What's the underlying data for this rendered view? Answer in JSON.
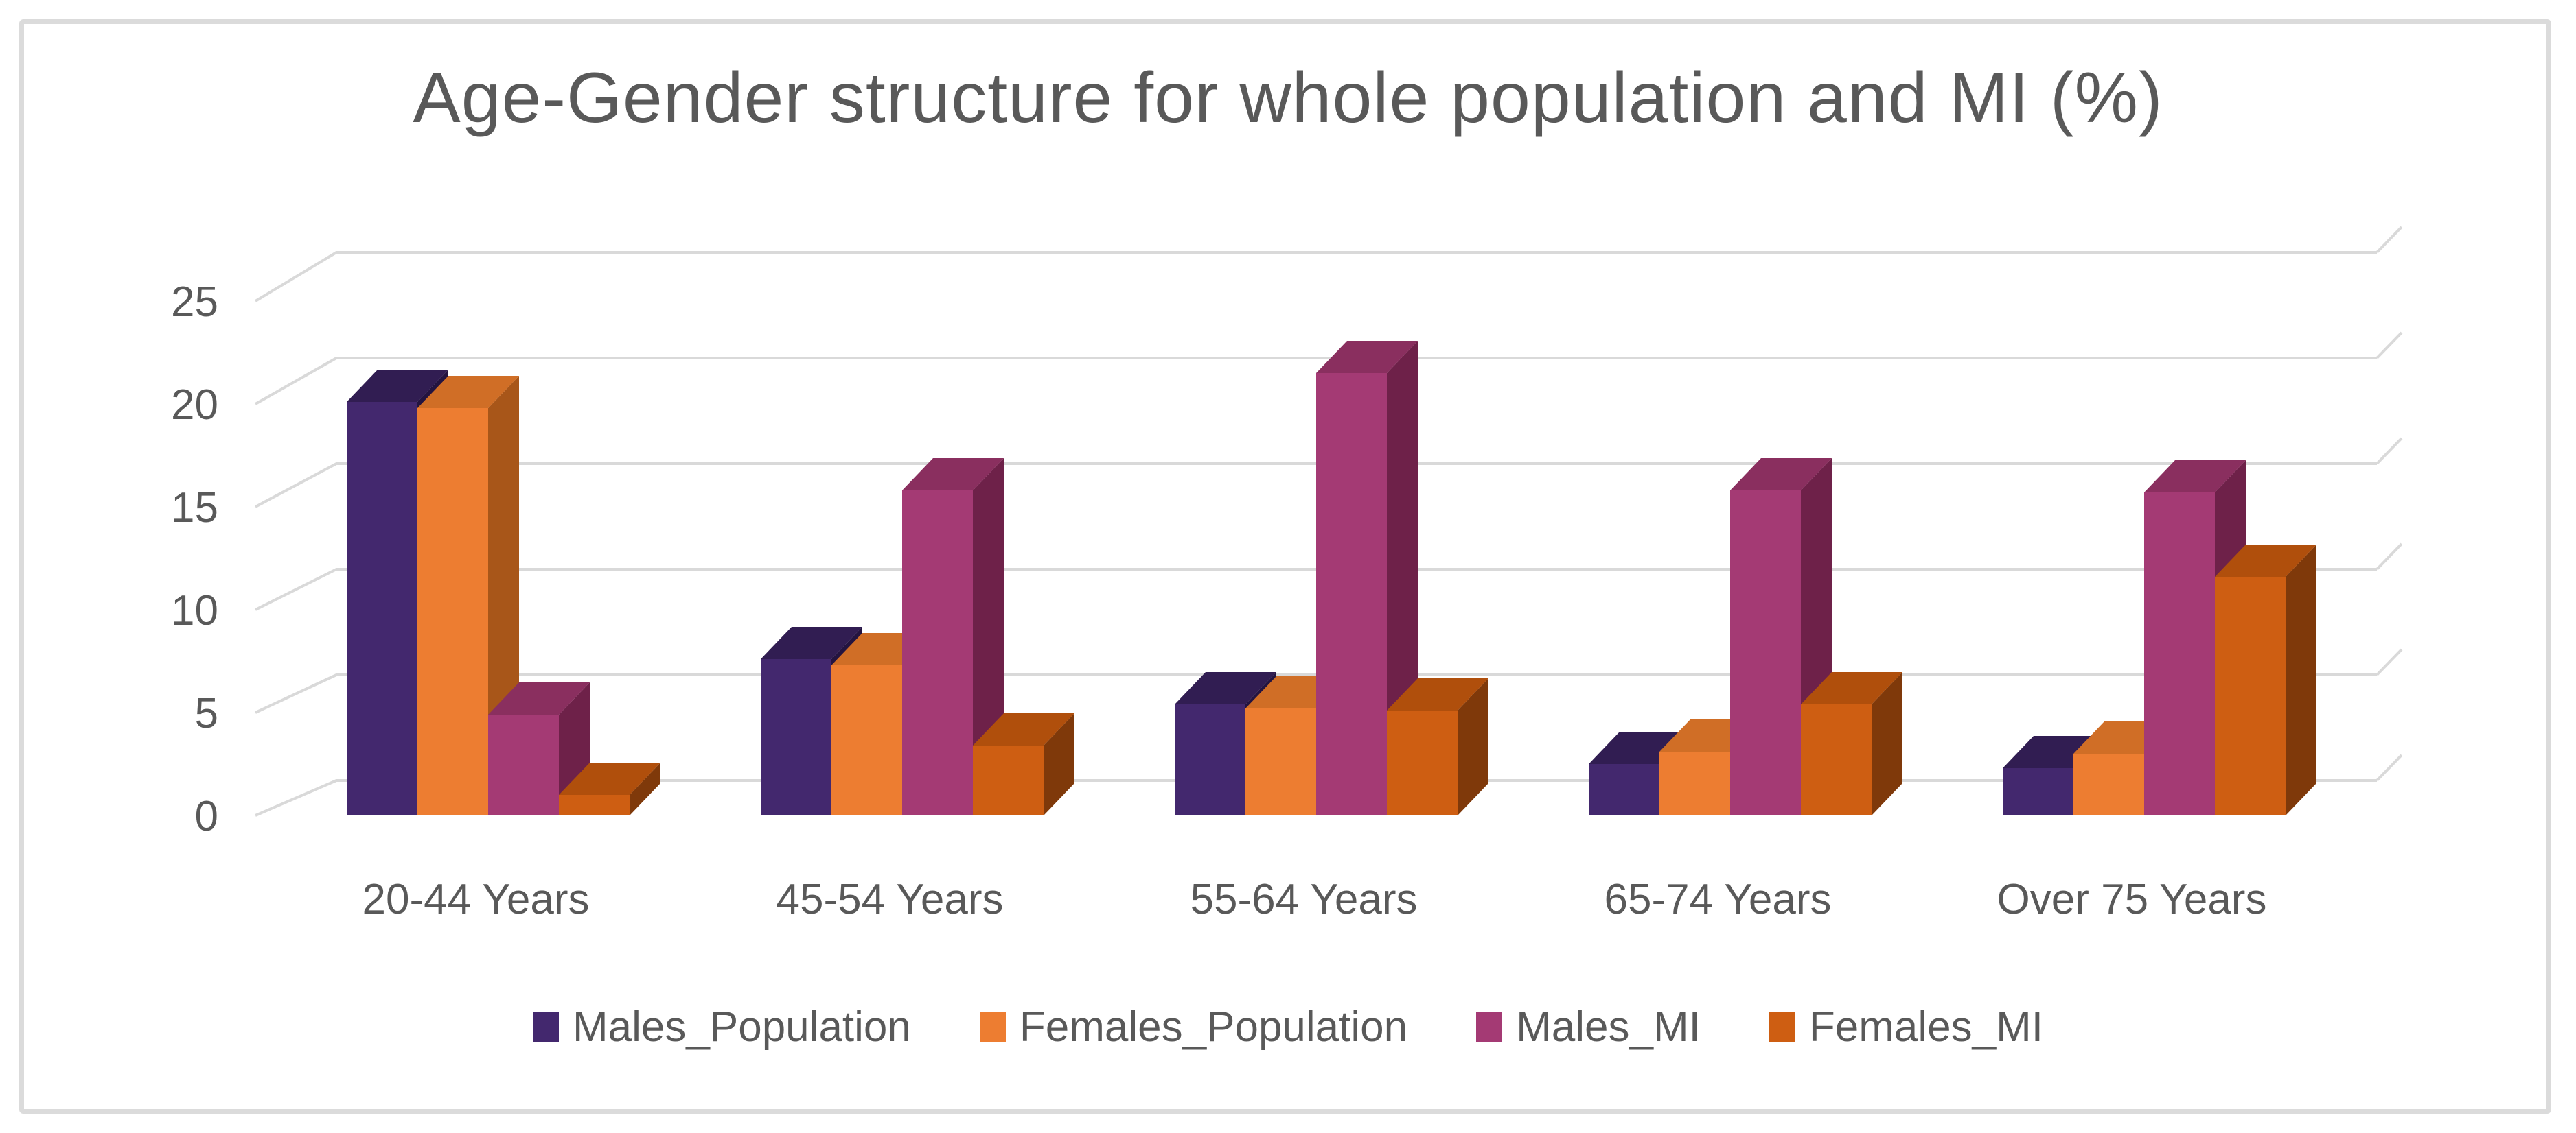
{
  "chart_data": {
    "type": "bar",
    "variant": "3d-clustered-column",
    "title": "Age-Gender structure for whole population and MI (%)",
    "categories": [
      "20-44 Years",
      "45-54 Years",
      "55-64 Years",
      "65-74 Years",
      "Over 75 Years"
    ],
    "series": [
      {
        "name": "Males_Population",
        "color": "#43286E",
        "color_top": "#311D52",
        "color_side": "#241440",
        "values": [
          20.1,
          7.6,
          5.4,
          2.5,
          2.3
        ]
      },
      {
        "name": "Females_Population",
        "color": "#ED7D31",
        "color_top": "#D06E26",
        "color_side": "#A85619",
        "values": [
          19.8,
          7.3,
          5.2,
          3.1,
          3.0
        ]
      },
      {
        "name": "Males_MI",
        "color": "#A43A74",
        "color_top": "#8A2F5F",
        "color_side": "#6E2149",
        "values": [
          4.9,
          15.8,
          21.5,
          15.8,
          15.7
        ]
      },
      {
        "name": "Females_MI",
        "color": "#CE5E12",
        "color_top": "#B04F0C",
        "color_side": "#7F390A",
        "values": [
          1.0,
          3.4,
          5.1,
          5.4,
          11.6
        ]
      }
    ],
    "y_axis": {
      "min": 0,
      "max": 25,
      "tick_step": 5,
      "tick_values": [
        0,
        5,
        10,
        15,
        20,
        25
      ],
      "tick_labels": [
        "0",
        "5",
        "10",
        "15",
        "20",
        "25"
      ]
    },
    "grid": true,
    "legend_position": "bottom",
    "text_color": "#595959",
    "gridline_color": "#D9D9D9",
    "border_color": "#DBDBDB",
    "background": "#FFFFFF"
  }
}
